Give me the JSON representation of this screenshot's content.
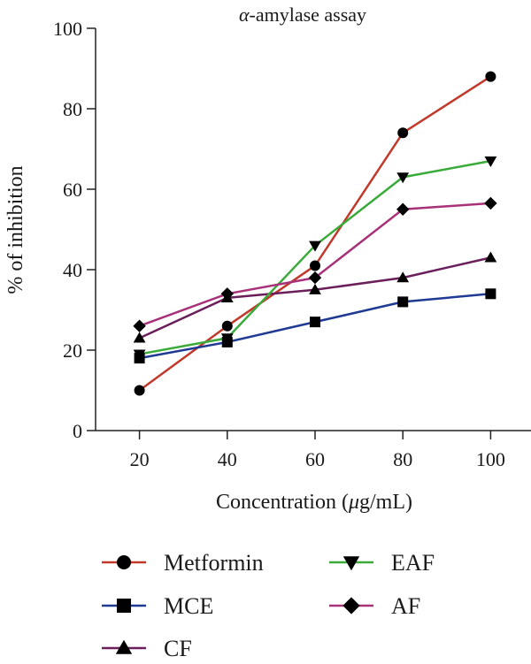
{
  "chart_data": {
    "type": "line",
    "title": "α-amylase assay",
    "title_prefix": "α",
    "title_suffix": "-amylase assay",
    "xlabel": "Concentration (μg/mL)",
    "xlabel_prefix": "Concentration (",
    "xlabel_mu": "μ",
    "xlabel_suffix": "g/mL)",
    "ylabel": "% of inhibition",
    "x": [
      20,
      40,
      60,
      80,
      100
    ],
    "xlim": [
      10,
      110
    ],
    "ylim": [
      0,
      100
    ],
    "y_ticks": [
      0,
      20,
      40,
      60,
      80,
      100
    ],
    "grid": false,
    "legend_position": "bottom",
    "series": [
      {
        "name": "Metformin",
        "values": [
          10,
          26,
          41,
          74,
          88
        ],
        "color": "#c0392b",
        "marker": "circle"
      },
      {
        "name": "MCE",
        "values": [
          18,
          22,
          27,
          32,
          34
        ],
        "color": "#1f3a93",
        "marker": "square"
      },
      {
        "name": "CF",
        "values": [
          23,
          33,
          35,
          38,
          43
        ],
        "color": "#6b1f5a",
        "marker": "triangle-up"
      },
      {
        "name": "EAF",
        "values": [
          19,
          23,
          46,
          63,
          67
        ],
        "color": "#3aaa3a",
        "marker": "triangle-down"
      },
      {
        "name": "AF",
        "values": [
          26,
          34,
          38,
          55,
          56.5
        ],
        "color": "#a8327a",
        "marker": "diamond"
      }
    ]
  }
}
